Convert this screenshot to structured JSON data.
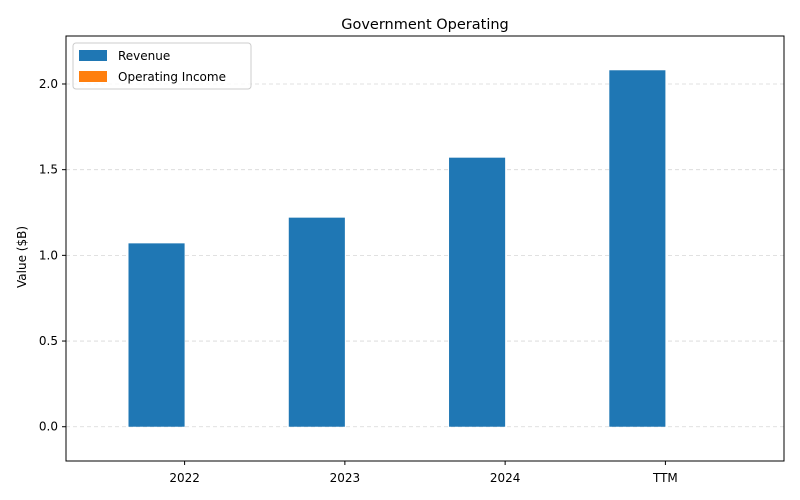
{
  "chart_data": {
    "type": "bar",
    "title": "Government Operating",
    "xlabel": "",
    "ylabel": "Value ($B)",
    "categories": [
      "2022",
      "2023",
      "2024",
      "TTM"
    ],
    "series": [
      {
        "name": "Revenue",
        "color": "#1f77b4",
        "values": [
          1.07,
          1.22,
          1.57,
          2.08
        ]
      },
      {
        "name": "Operating Income",
        "color": "#ff7f0e",
        "values": [
          0,
          0,
          0,
          0
        ]
      }
    ],
    "ylim": [
      -0.2,
      2.28
    ],
    "yticks": [
      0.0,
      0.5,
      1.0,
      1.5,
      2.0
    ],
    "ytick_labels": [
      "0.0",
      "0.5",
      "1.0",
      "1.5",
      "2.0"
    ],
    "grid": "horizontal dashed",
    "legend_position": "top-left"
  }
}
